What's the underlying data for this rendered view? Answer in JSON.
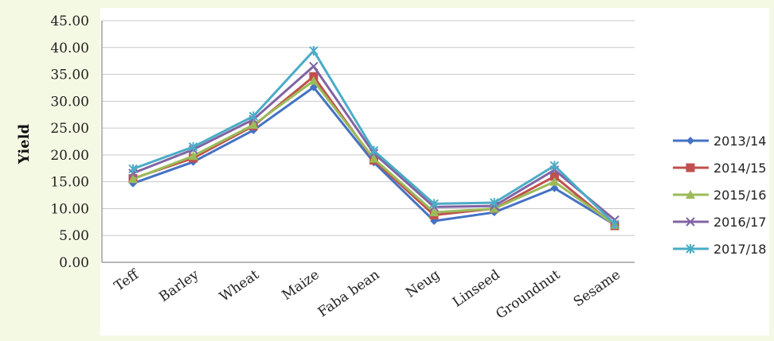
{
  "chart_data": {
    "type": "line",
    "ylabel": "Yield",
    "xlabel": "",
    "ylim": [
      0,
      45
    ],
    "yticks": [
      "0.00",
      "5.00",
      "10.00",
      "15.00",
      "20.00",
      "25.00",
      "30.00",
      "35.00",
      "40.00",
      "45.00"
    ],
    "categories": [
      "Teff",
      "Barley",
      "Wheat",
      "Maize",
      "Faba bean",
      "Neug",
      "Linseed",
      "Groundnut",
      "Sesame"
    ],
    "grid": "horizontal",
    "legend_position": "right",
    "series": [
      {
        "name": "2013/14",
        "color": "#4472c4",
        "marker": "diamond",
        "values": [
          14.7,
          18.7,
          24.6,
          32.6,
          18.6,
          7.7,
          9.3,
          13.8,
          7.0
        ]
      },
      {
        "name": "2014/15",
        "color": "#c0504d",
        "marker": "square",
        "values": [
          15.6,
          19.4,
          25.4,
          34.6,
          19.0,
          8.8,
          10.0,
          16.0,
          6.8
        ]
      },
      {
        "name": "2015/16",
        "color": "#9bbb59",
        "marker": "triangle",
        "values": [
          15.5,
          19.8,
          25.6,
          33.8,
          19.3,
          9.3,
          10.0,
          15.0,
          7.0
        ]
      },
      {
        "name": "2016/17",
        "color": "#8064a2",
        "marker": "x",
        "values": [
          16.6,
          21.0,
          26.6,
          36.5,
          20.3,
          10.3,
          10.5,
          17.2,
          7.9
        ]
      },
      {
        "name": "2017/18",
        "color": "#4bacc6",
        "marker": "star",
        "values": [
          17.4,
          21.5,
          27.2,
          39.4,
          20.8,
          10.9,
          11.1,
          18.0,
          7.1
        ]
      }
    ]
  }
}
